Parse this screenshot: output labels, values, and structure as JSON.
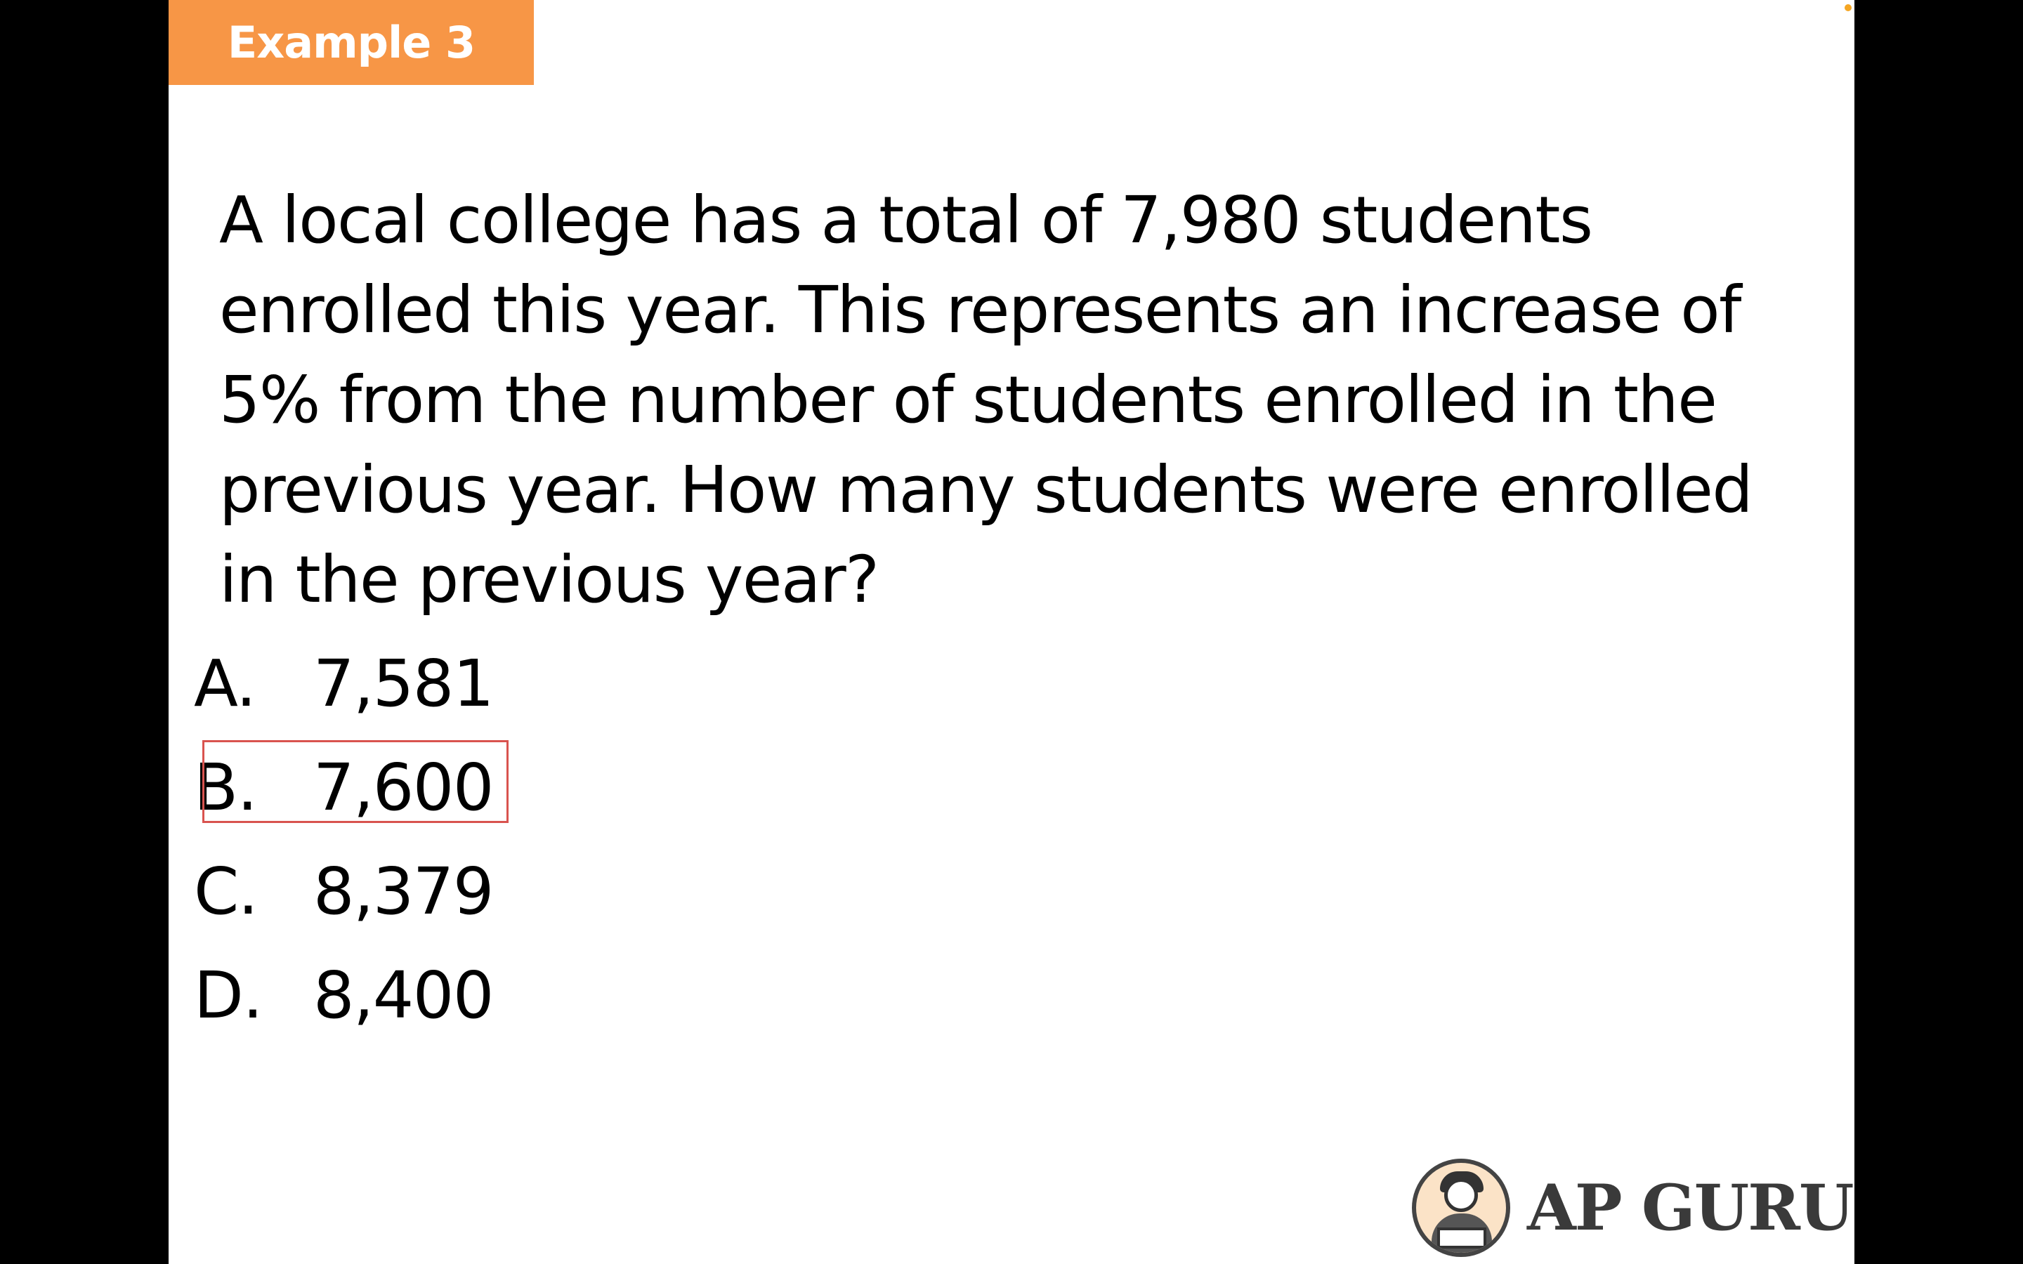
{
  "slide": {
    "badge_label": "Example 3",
    "question": "A local college has a total of 7,980 students enrolled this year.  This represents an increase of 5% from the number of students enrolled in the previous year.  How many students were enrolled in the previous year?",
    "options": [
      {
        "letter": "A.",
        "value": "7,581"
      },
      {
        "letter": "B.",
        "value": "7,600"
      },
      {
        "letter": "C.",
        "value": "8,379"
      },
      {
        "letter": "D.",
        "value": "8,400"
      }
    ],
    "highlighted_option": "B."
  },
  "logo": {
    "text": "AP GURU",
    "icon": "reading-person-icon"
  },
  "colors": {
    "badge_background": "#f79646",
    "highlight_border": "#d9534f",
    "logo_text": "#3a3a3a",
    "letterbox": "#000000"
  }
}
